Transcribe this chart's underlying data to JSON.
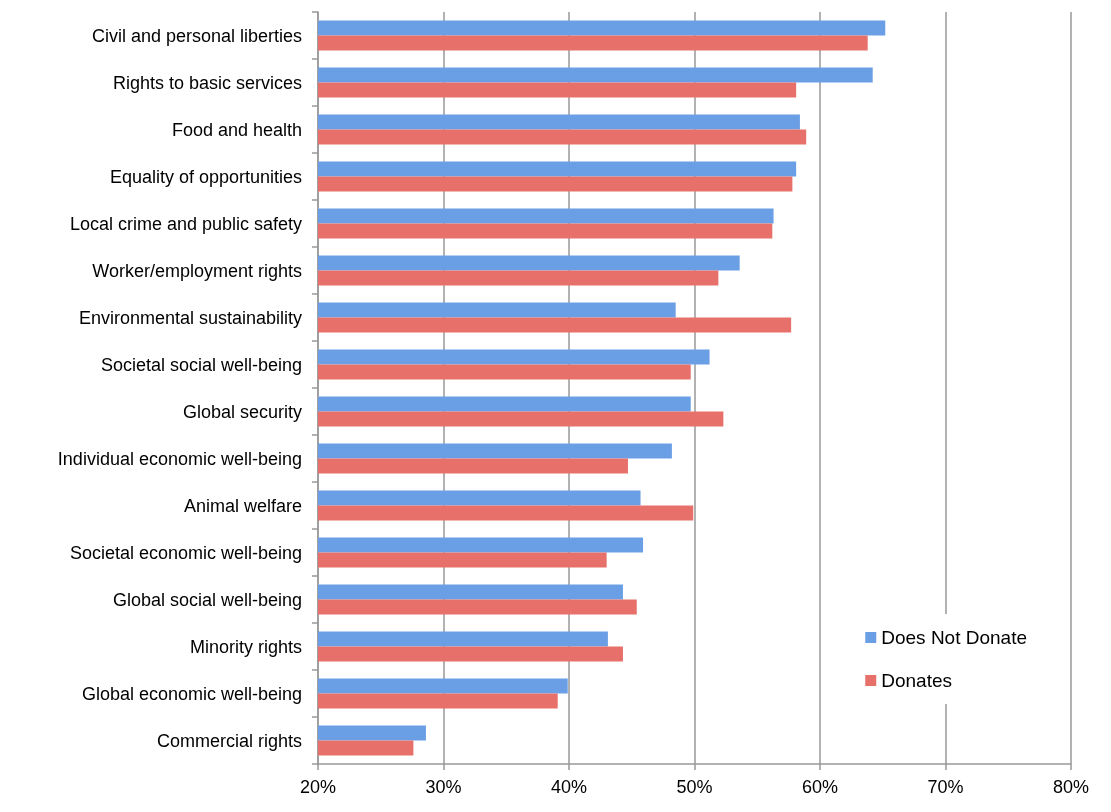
{
  "chart_data": {
    "type": "bar",
    "orientation": "horizontal",
    "categories": [
      "Civil and personal liberties",
      "Rights to basic services",
      "Food and health",
      "Equality of opportunities",
      "Local crime and public safety",
      "Worker/employment rights",
      "Environmental sustainability",
      "Societal social well-being",
      "Global security",
      "Individual economic well-being",
      "Animal welfare",
      "Societal economic well-being",
      "Global social well-being",
      "Minority rights",
      "Global economic well-being",
      "Commercial rights"
    ],
    "series": [
      {
        "name": "Does Not Donate",
        "color": "#6a9fe6",
        "values": [
          65.2,
          64.2,
          58.4,
          58.1,
          56.3,
          53.6,
          48.5,
          51.2,
          49.7,
          48.2,
          45.7,
          45.9,
          44.3,
          43.1,
          39.9,
          28.6
        ]
      },
      {
        "name": "Donates",
        "color": "#e8706a",
        "values": [
          63.8,
          58.1,
          58.9,
          57.8,
          56.2,
          51.9,
          57.7,
          49.7,
          52.3,
          44.7,
          49.9,
          43.0,
          45.4,
          44.3,
          39.1,
          27.6
        ]
      }
    ],
    "xlim": [
      20,
      80
    ],
    "xticks": [
      {
        "value": 20,
        "label": "20%"
      },
      {
        "value": 30,
        "label": "30%"
      },
      {
        "value": 40,
        "label": "40%"
      },
      {
        "value": 50,
        "label": "50%"
      },
      {
        "value": 60,
        "label": "60%"
      },
      {
        "value": 70,
        "label": "70%"
      },
      {
        "value": 80,
        "label": "80%"
      }
    ],
    "grid": "x",
    "legend": "bottom right"
  }
}
